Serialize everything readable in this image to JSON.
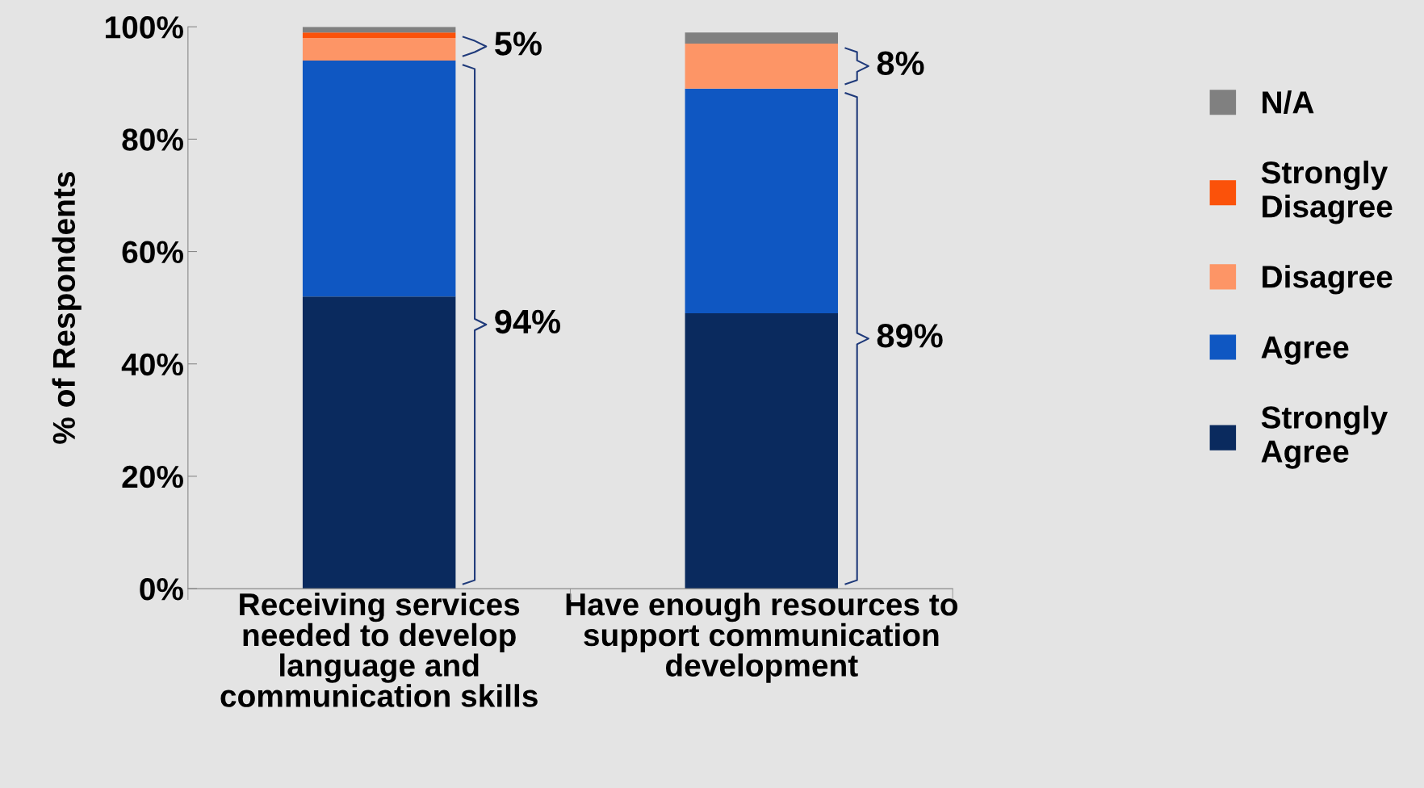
{
  "chart_data": {
    "type": "bar",
    "stacked": true,
    "ylabel": "% of Respondents",
    "categories": [
      "Receiving services needed to develop language and communication skills",
      "Have enough resources to support communication development"
    ],
    "series": [
      {
        "name": "Strongly Agree",
        "color": "#0a2a5e",
        "values": [
          52,
          49
        ]
      },
      {
        "name": "Agree",
        "color": "#0f57c2",
        "values": [
          42,
          40
        ]
      },
      {
        "name": "Disagree",
        "color": "#fd9566",
        "values": [
          4,
          8
        ]
      },
      {
        "name": "Strongly Disagree",
        "color": "#fb520a",
        "values": [
          1,
          0
        ]
      },
      {
        "name": "N/A",
        "color": "#808080",
        "values": [
          1,
          2
        ]
      }
    ],
    "ylim": [
      0,
      100
    ],
    "yticks": [
      {
        "value": 0,
        "label": "0%"
      },
      {
        "value": 20,
        "label": "20%"
      },
      {
        "value": 40,
        "label": "40%"
      },
      {
        "value": 60,
        "label": "60%"
      },
      {
        "value": 80,
        "label": "80%"
      },
      {
        "value": 100,
        "label": "100%"
      }
    ],
    "annotations": [
      "5%",
      "94%",
      "8%",
      "89%"
    ],
    "legend": "right",
    "grid": false
  }
}
